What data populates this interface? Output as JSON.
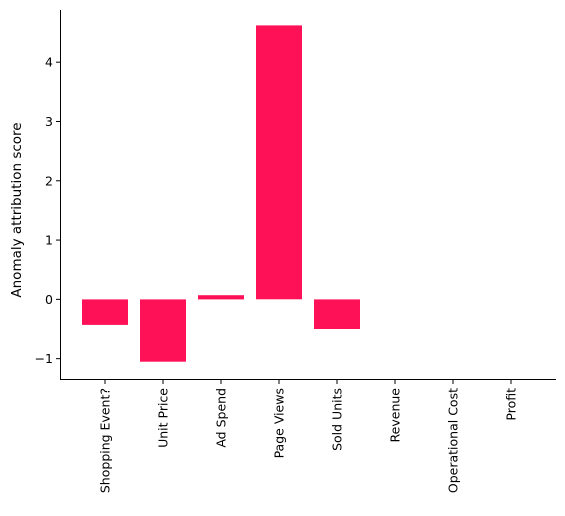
{
  "chart_data": {
    "type": "bar",
    "categories": [
      "Shopping Event?",
      "Unit Price",
      "Ad Spend",
      "Page Views",
      "Sold Units",
      "Revenue",
      "Operational Cost",
      "Profit"
    ],
    "values": [
      -0.43,
      -1.05,
      0.07,
      4.62,
      -0.5,
      0,
      0,
      0
    ],
    "title": "",
    "xlabel": "",
    "ylabel": "Anomaly attribution score",
    "ylim": [
      -1.36,
      4.88
    ],
    "yticks": [
      -1,
      0,
      1,
      2,
      3,
      4
    ],
    "ytick_labels": [
      "−1",
      "0",
      "1",
      "2",
      "3",
      "4"
    ],
    "bar_color": "#ff1158",
    "grid": false,
    "legend": "none"
  }
}
